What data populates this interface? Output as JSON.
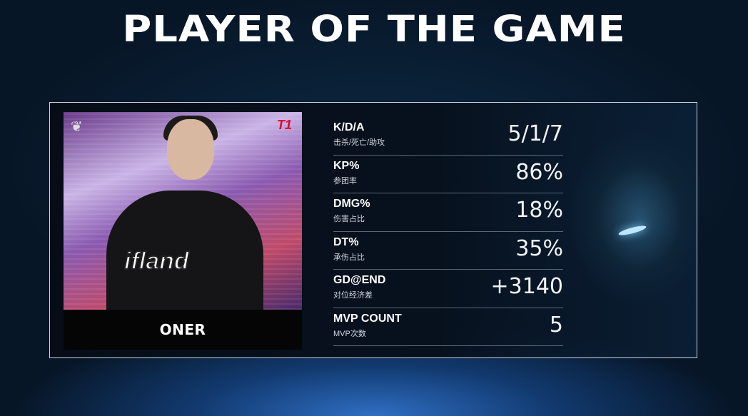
{
  "header": {
    "title": "PLAYER OF THE GAME"
  },
  "player": {
    "name": "ONER",
    "jersey_text": "ifland",
    "team_logo": "T1",
    "league_logo": "leaf-emblem-icon"
  },
  "stats": [
    {
      "label": "K/D/A",
      "sub": "击杀/死亡/助攻",
      "value": "5/1/7"
    },
    {
      "label": "KP%",
      "sub": "参团率",
      "value": "86%"
    },
    {
      "label": "DMG%",
      "sub": "伤害占比",
      "value": "18%"
    },
    {
      "label": "DT%",
      "sub": "承伤占比",
      "value": "35%"
    },
    {
      "label": "GD@END",
      "sub": "对位经济差",
      "value": "+3140"
    },
    {
      "label": "MVP COUNT",
      "sub": "MVP次数",
      "value": "5"
    }
  ],
  "colors": {
    "team_red": "#e2012d",
    "border": "#c9d3de",
    "background": "#061322"
  }
}
